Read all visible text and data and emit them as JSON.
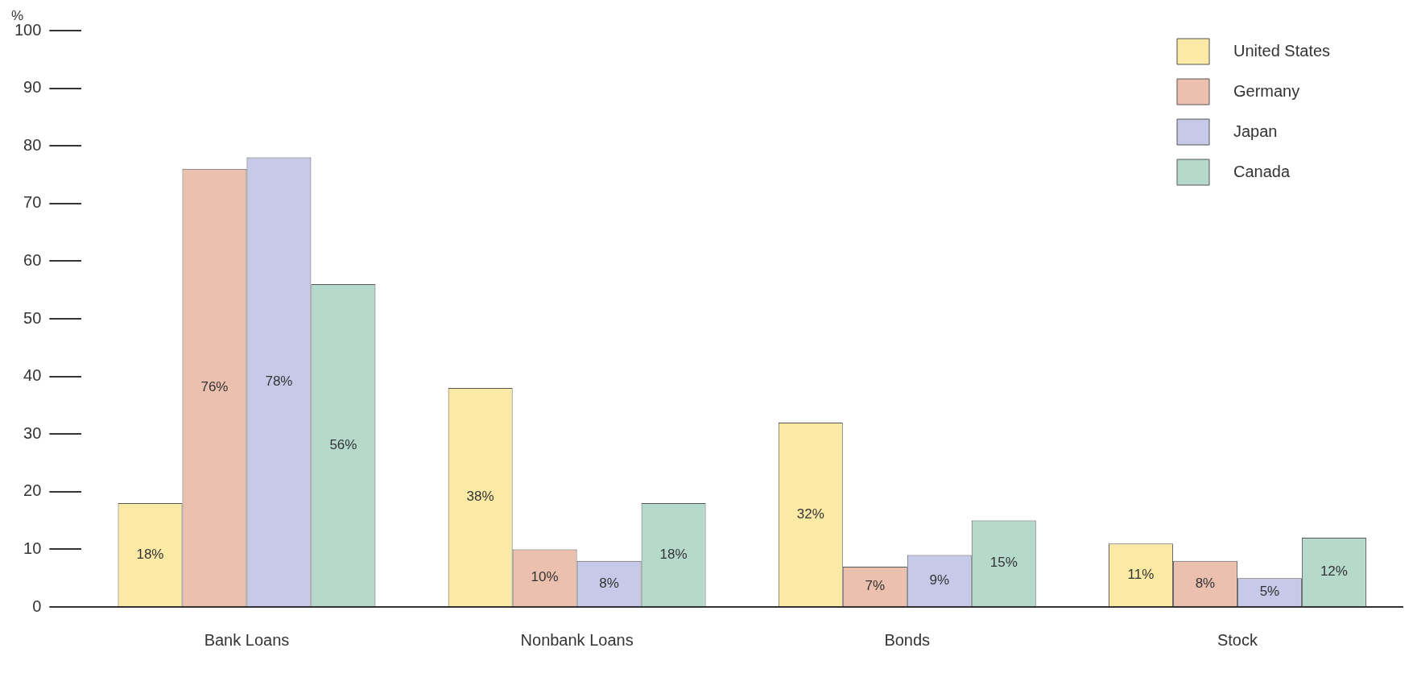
{
  "chart_data": {
    "type": "bar",
    "ylabel": "%",
    "categories": [
      "Bank Loans",
      "Nonbank Loans",
      "Bonds",
      "Stock"
    ],
    "series": [
      {
        "name": "United States",
        "color": "#fbeaa5",
        "values": [
          18,
          38,
          32,
          11
        ],
        "value_labels": [
          "18%",
          "38%",
          "32%",
          "11%"
        ]
      },
      {
        "name": "Germany",
        "color": "#ecc0ae",
        "values": [
          76,
          10,
          7,
          8
        ],
        "value_labels": [
          "76%",
          "10%",
          "7%",
          "8%"
        ]
      },
      {
        "name": "Japan",
        "color": "#c6c9e7",
        "values": [
          78,
          8,
          9,
          5
        ],
        "value_labels": [
          "78%",
          "8%",
          "9%",
          "5%"
        ]
      },
      {
        "name": "Canada",
        "color": "#b5dacc",
        "values": [
          56,
          18,
          15,
          12
        ],
        "value_labels": [
          "56%",
          "18%",
          "15%",
          "12%"
        ]
      }
    ],
    "ylim": [
      0,
      100
    ],
    "yticks": [
      0,
      10,
      20,
      30,
      40,
      50,
      60,
      70,
      80,
      90,
      100
    ],
    "grid": false,
    "legend": "top right"
  }
}
